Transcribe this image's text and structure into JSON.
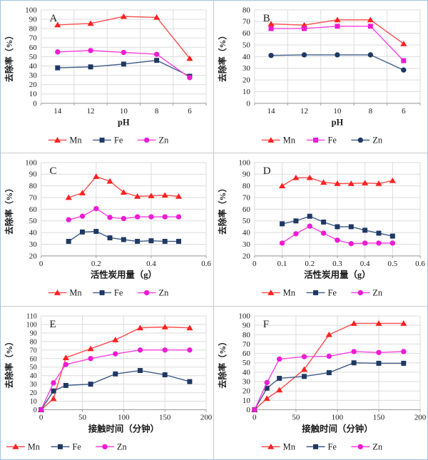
{
  "page": {
    "background": "#FFFFFF",
    "outer_border_color": "#9DC3E6",
    "cell_border_color": "#C9C9C9",
    "gridline_color": "#DCDCDC",
    "axis_color": "#9B9B9B"
  },
  "ylabel": "去除率（%）",
  "legend_labels": [
    "Mn",
    "Fe",
    "Zn"
  ],
  "chart_data": [
    {
      "panel": "A",
      "type": "line",
      "x_type": "category",
      "categories": [
        "14",
        "12",
        "10",
        "8",
        "6"
      ],
      "xlabel": "pH",
      "ylabel": "去除率（%）",
      "ylim": [
        0,
        100
      ],
      "ytick_step": 10,
      "grid": "both",
      "legend_position": "bottom-center",
      "series": [
        {
          "name": "Mn",
          "marker": "triangle",
          "color": "#FF2020",
          "line_color": "#FF4A4A",
          "values": [
            84,
            85.5,
            93,
            92,
            48
          ]
        },
        {
          "name": "Fe",
          "marker": "square",
          "color": "#1F3864",
          "line_color": "#3D5A86",
          "values": [
            38,
            39,
            42,
            46,
            29
          ]
        },
        {
          "name": "Zn",
          "marker": "circle",
          "color": "#EE1BD3",
          "line_color": "#F93FE0",
          "values": [
            55,
            56.5,
            54.5,
            52.5,
            27.5
          ]
        }
      ]
    },
    {
      "panel": "B",
      "type": "line",
      "x_type": "category",
      "categories": [
        "14",
        "12",
        "10",
        "8",
        "6"
      ],
      "xlabel": "pH",
      "ylabel": "去除率（%）",
      "ylim": [
        0,
        80
      ],
      "ytick_step": 10,
      "grid": "both",
      "legend_position": "bottom-center",
      "series": [
        {
          "name": "Mn",
          "marker": "triangle",
          "color": "#FF2020",
          "line_color": "#FF4A4A",
          "values": [
            68,
            67,
            71.5,
            71.5,
            51
          ]
        },
        {
          "name": "Fe",
          "marker": "square",
          "color": "#EE1BD3",
          "line_color": "#F93FE0",
          "values": [
            64,
            64,
            66,
            66,
            36.5
          ]
        },
        {
          "name": "Zn",
          "marker": "circle",
          "color": "#1F3864",
          "line_color": "#3D5A86",
          "values": [
            41,
            41.5,
            41.5,
            41.5,
            28.5
          ]
        }
      ]
    },
    {
      "panel": "C",
      "type": "line",
      "x_type": "numeric",
      "xlim": [
        0,
        0.6
      ],
      "xticks": [
        {
          "v": 0,
          "label": "0"
        },
        {
          "v": 0.2,
          "label": "0.2"
        },
        {
          "v": 0.4,
          "label": "0.4"
        },
        {
          "v": 0.6,
          "label": "0.6"
        }
      ],
      "x": [
        0.1,
        0.15,
        0.2,
        0.25,
        0.3,
        0.35,
        0.4,
        0.45,
        0.5
      ],
      "xlabel": "活性炭用量（g）",
      "ylabel": "去除率（%）",
      "ylim": [
        20,
        100
      ],
      "ytick_step": 10,
      "grid": "both",
      "legend_position": "bottom-center",
      "series": [
        {
          "name": "Mn",
          "marker": "triangle",
          "color": "#FF2020",
          "line_color": "#FF4A4A",
          "values": [
            70,
            74,
            88,
            84,
            74.5,
            71,
            71.5,
            72,
            71
          ]
        },
        {
          "name": "Fe",
          "marker": "square",
          "color": "#1F3864",
          "line_color": "#3D5A86",
          "values": [
            32.5,
            40.5,
            41,
            35.5,
            34,
            32.5,
            33,
            32.5,
            32.5
          ]
        },
        {
          "name": "Zn",
          "marker": "circle",
          "color": "#EE1BD3",
          "line_color": "#F93FE0",
          "values": [
            51,
            54,
            60.5,
            53,
            52,
            53.5,
            53.5,
            53.5,
            53.5
          ]
        }
      ]
    },
    {
      "panel": "D",
      "type": "line",
      "x_type": "numeric",
      "xlim": [
        0,
        0.6
      ],
      "xticks": [
        {
          "v": 0,
          "label": "0"
        },
        {
          "v": 0.1,
          "label": "0.1"
        },
        {
          "v": 0.2,
          "label": "0.2"
        },
        {
          "v": 0.3,
          "label": "0.3"
        },
        {
          "v": 0.4,
          "label": "0.4"
        },
        {
          "v": 0.5,
          "label": "0.5"
        },
        {
          "v": 0.6,
          "label": "0.6"
        }
      ],
      "x": [
        0.1,
        0.15,
        0.2,
        0.25,
        0.3,
        0.35,
        0.4,
        0.45,
        0.5
      ],
      "xlabel": "活性炭用量（g）",
      "ylabel": "去除率（%）",
      "ylim": [
        20,
        100
      ],
      "ytick_step": 10,
      "grid": "both",
      "legend_position": "bottom-center",
      "series": [
        {
          "name": "Mn",
          "marker": "triangle",
          "color": "#FF2020",
          "line_color": "#FF4A4A",
          "values": [
            80,
            87,
            87,
            83,
            82,
            82,
            82.5,
            82,
            84.5
          ]
        },
        {
          "name": "Fe",
          "marker": "square",
          "color": "#1F3864",
          "line_color": "#3D5A86",
          "values": [
            47.5,
            50,
            54,
            49,
            45,
            45,
            42,
            39.5,
            37
          ]
        },
        {
          "name": "Zn",
          "marker": "circle",
          "color": "#EE1BD3",
          "line_color": "#F93FE0",
          "values": [
            31,
            39,
            45.5,
            39.5,
            33.5,
            30.5,
            31,
            31,
            31
          ]
        }
      ]
    },
    {
      "panel": "E",
      "type": "line",
      "x_type": "numeric",
      "xlim": [
        0,
        200
      ],
      "xticks": [
        {
          "v": 0,
          "label": "0"
        },
        {
          "v": 50,
          "label": "50"
        },
        {
          "v": 100,
          "label": "100"
        },
        {
          "v": 150,
          "label": "150"
        },
        {
          "v": 200,
          "label": "200"
        }
      ],
      "x": [
        0,
        15,
        30,
        60,
        90,
        120,
        150,
        180
      ],
      "xlabel": "接触时间（分钟）",
      "ylabel": "去除率（%）",
      "ylim": [
        0,
        110
      ],
      "ytick_step": 10,
      "grid": "both",
      "legend_position": "bottom-left",
      "series": [
        {
          "name": "Mn",
          "marker": "triangle",
          "color": "#FF2020",
          "line_color": "#FF4A4A",
          "values": [
            0,
            13,
            61,
            71.5,
            82,
            96,
            97,
            96
          ]
        },
        {
          "name": "Fe",
          "marker": "square",
          "color": "#1F3864",
          "line_color": "#3D5A86",
          "values": [
            0,
            22,
            28.5,
            30,
            42,
            46,
            41,
            33
          ]
        },
        {
          "name": "Zn",
          "marker": "circle",
          "color": "#EE1BD3",
          "line_color": "#F93FE0",
          "values": [
            0,
            31.5,
            53,
            60,
            65.5,
            70,
            70,
            70
          ]
        }
      ]
    },
    {
      "panel": "F",
      "type": "line",
      "x_type": "numeric",
      "xlim": [
        0,
        200
      ],
      "xticks": [
        {
          "v": 0,
          "label": "0"
        },
        {
          "v": 50,
          "label": "50"
        },
        {
          "v": 100,
          "label": "100"
        },
        {
          "v": 150,
          "label": "150"
        },
        {
          "v": 200,
          "label": "200"
        }
      ],
      "x": [
        0,
        15,
        30,
        60,
        90,
        120,
        150,
        180
      ],
      "xlabel": "接触时间（分钟）",
      "ylabel": "去除率（%）",
      "ylim": [
        0,
        100
      ],
      "ytick_step": 10,
      "grid": "both",
      "legend_position": "bottom-center",
      "series": [
        {
          "name": "Mn",
          "marker": "triangle",
          "color": "#FF2020",
          "line_color": "#FF4A4A",
          "values": [
            0,
            12,
            21,
            43,
            80,
            92,
            92,
            92
          ]
        },
        {
          "name": "Fe",
          "marker": "square",
          "color": "#1F3864",
          "line_color": "#3D5A86",
          "values": [
            0,
            23,
            33.5,
            35.5,
            39.5,
            50,
            49.5,
            49.5
          ]
        },
        {
          "name": "Zn",
          "marker": "circle",
          "color": "#EE1BD3",
          "line_color": "#F93FE0",
          "values": [
            0,
            29,
            54,
            56.5,
            57,
            62,
            61,
            62
          ]
        }
      ]
    }
  ]
}
